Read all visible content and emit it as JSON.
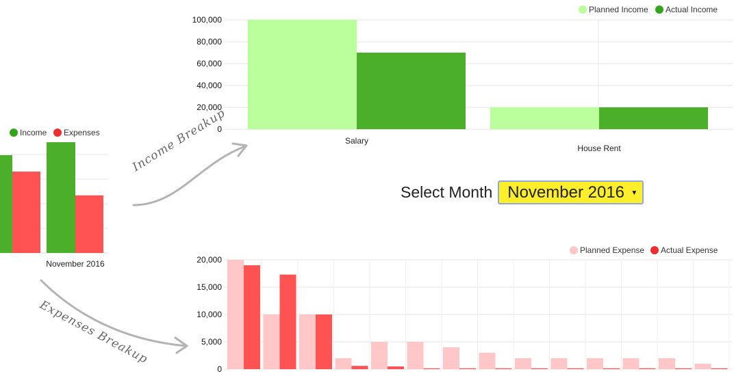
{
  "colors": {
    "planned_income": "#baff9c",
    "actual_income": "#4caf2a",
    "planned_expense": "#ffc7c7",
    "actual_expense": "#ff5252",
    "legend_income": "#33a51c",
    "legend_expense": "#ee2e2e"
  },
  "select_month": {
    "label": "Select Month",
    "value": "November 2016"
  },
  "annotations": {
    "income": "Income Breakup",
    "expenses": "Expenses Breakup"
  },
  "chart_data": [
    {
      "id": "summary",
      "type": "bar",
      "categories": [
        "",
        "November 2016"
      ],
      "series": [
        {
          "name": "Income",
          "values": [
            null,
            100000
          ]
        },
        {
          "name": "Expenses",
          "values": [
            null,
            52000
          ]
        }
      ],
      "legend_position": "top-right",
      "grid": true
    },
    {
      "id": "income",
      "type": "bar",
      "categories": [
        "Salary",
        "House Rent"
      ],
      "series": [
        {
          "name": "Planned Income",
          "values": [
            100000,
            20000
          ]
        },
        {
          "name": "Actual Income",
          "values": [
            70000,
            20000
          ]
        }
      ],
      "ylim": [
        0,
        100000
      ],
      "yticks": [
        "0",
        "20,000",
        "40,000",
        "60,000",
        "80,000",
        "100,000"
      ],
      "legend_position": "top-right",
      "grid": true
    },
    {
      "id": "expenses",
      "type": "bar",
      "categories": [
        "",
        "",
        "",
        "",
        "",
        "",
        "",
        "",
        "",
        "",
        "",
        "",
        "",
        "",
        ""
      ],
      "series": [
        {
          "name": "Planned Expense",
          "values": [
            20000,
            10000,
            10000,
            2000,
            5000,
            5000,
            4000,
            3000,
            2000,
            2000,
            2000,
            2000,
            2000,
            1000,
            0
          ]
        },
        {
          "name": "Actual Expense",
          "values": [
            19000,
            17300,
            10000,
            600,
            500,
            150,
            150,
            150,
            150,
            150,
            150,
            150,
            150,
            150,
            0
          ]
        }
      ],
      "ylim": [
        0,
        20000
      ],
      "yticks": [
        "0",
        "5,000",
        "10,000",
        "15,000",
        "20,000"
      ],
      "legend_position": "top-right",
      "grid": true
    }
  ]
}
